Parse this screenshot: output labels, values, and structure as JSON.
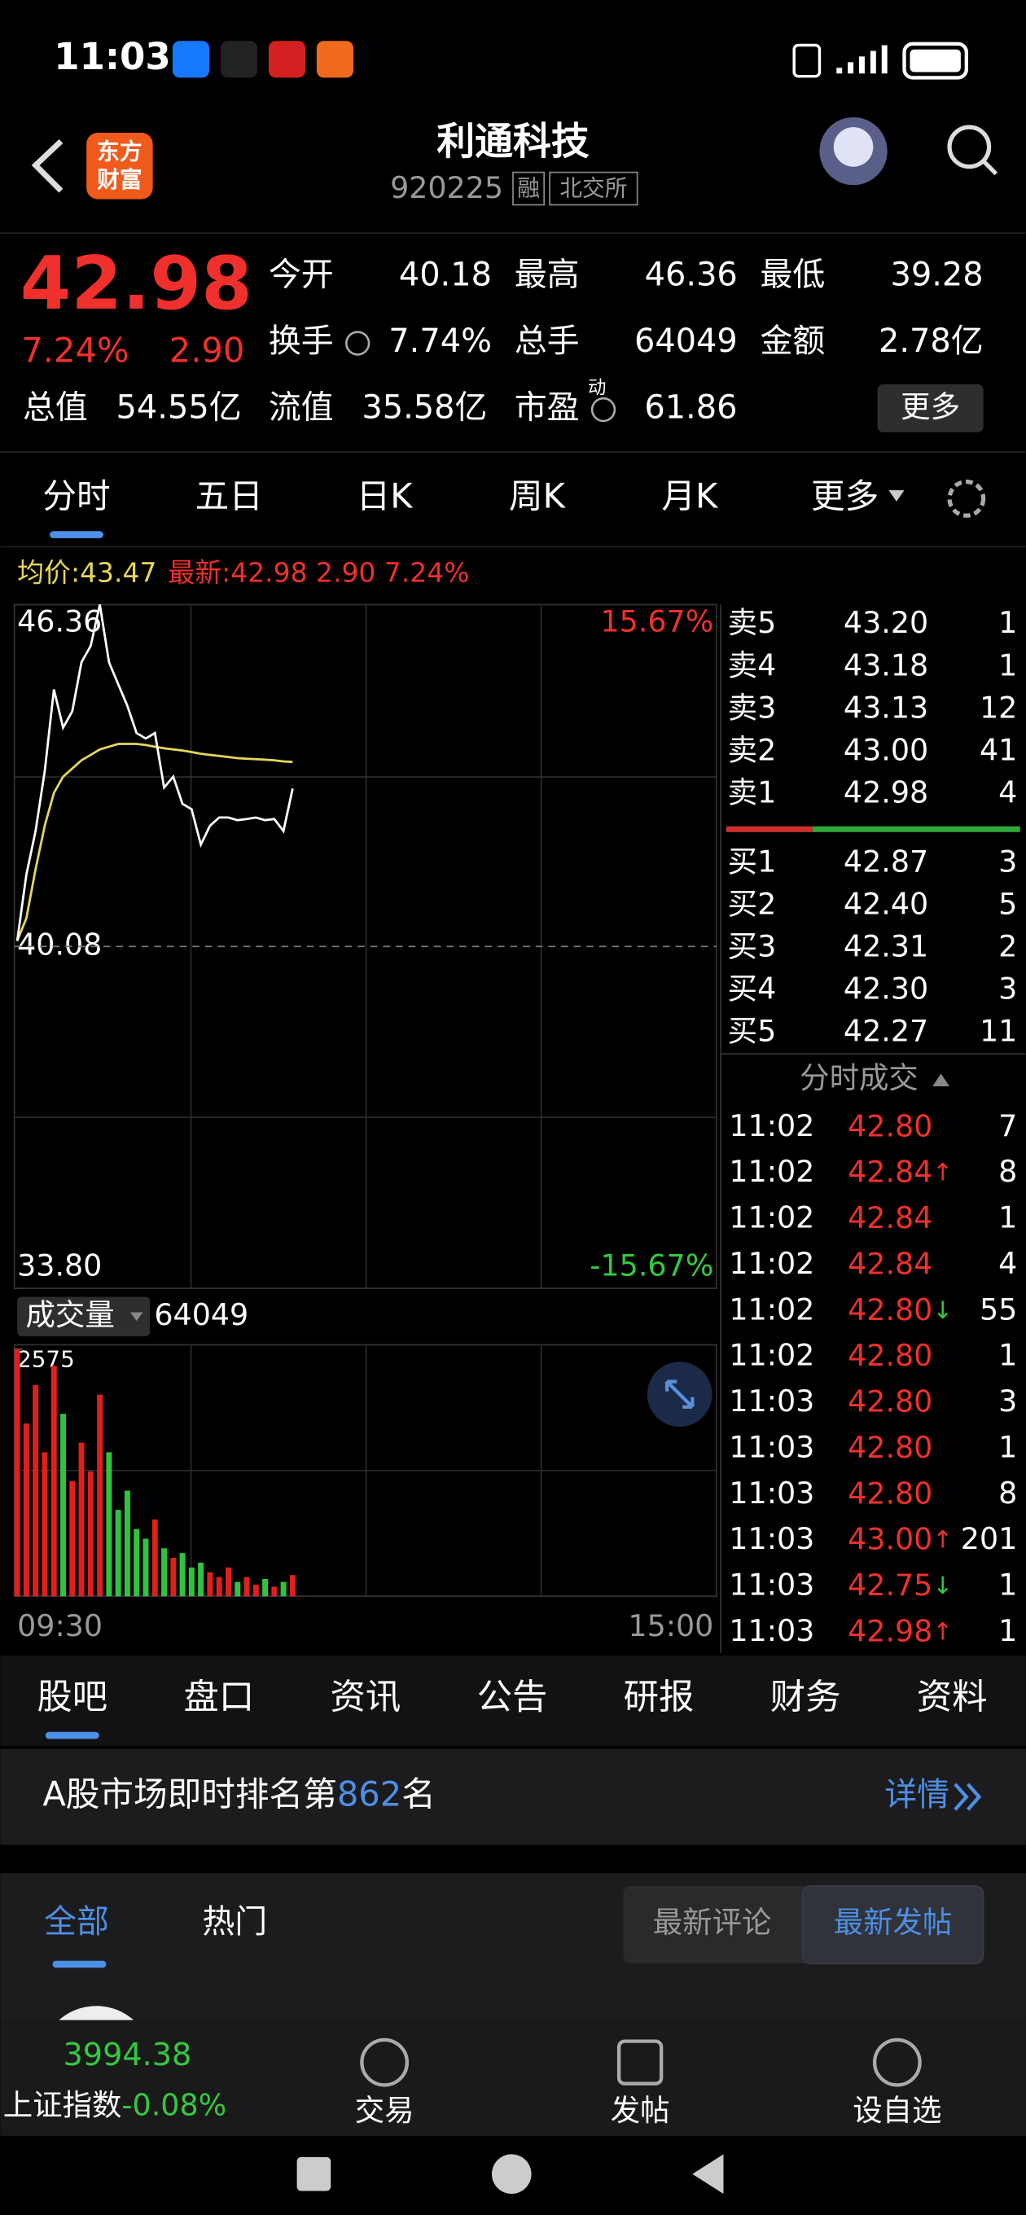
{
  "status": {
    "time": "11:03"
  },
  "header": {
    "logo": [
      "东方",
      "财富"
    ],
    "title": "利通科技",
    "code": "920225",
    "tags": [
      "融",
      "北交所"
    ]
  },
  "quote": {
    "price": "42.98",
    "pct": "7.24%",
    "change": "2.90",
    "color": "#f0302c",
    "stats": [
      {
        "label": "今开",
        "value": "40.18",
        "color": "#f0302c"
      },
      {
        "label": "最高",
        "value": "46.36",
        "color": "#f0302c"
      },
      {
        "label": "最低",
        "value": "39.28",
        "color": "#34c940"
      },
      {
        "label": "换手",
        "value": "7.74%",
        "color": "#ffffff"
      },
      {
        "label": "总手",
        "value": "64049",
        "color": "#ffffff"
      },
      {
        "label": "金额",
        "value": "2.78亿",
        "color": "#ffffff"
      },
      {
        "label": "总值",
        "value": "54.55亿",
        "color": "#ffffff"
      },
      {
        "label": "流值",
        "value": "35.58亿",
        "color": "#ffffff"
      },
      {
        "label": "市盈",
        "sup": "动",
        "value": "61.86",
        "color": "#ffffff"
      }
    ],
    "more": "更多"
  },
  "tabs": {
    "items": [
      "分时",
      "五日",
      "日K",
      "周K",
      "月K",
      "更多"
    ],
    "active": 0
  },
  "intraday": {
    "avg_label": "均价:",
    "avg": "43.47",
    "latest_label": "最新:",
    "latest": "42.98 2.90 7.24%",
    "ylim": [
      33.8,
      46.36
    ],
    "yticks": [
      46.36,
      40.08,
      {
        "value": 33.8,
        "label": "33.80"
      }
    ],
    "pct_labels": [
      "15.67%",
      "-15.67%"
    ],
    "price": [
      40.18,
      41.4,
      42.2,
      43.3,
      44.8,
      44.1,
      44.4,
      45.3,
      45.6,
      46.36,
      45.3,
      44.9,
      44.5,
      44.0,
      43.9,
      44.0,
      43.0,
      43.2,
      42.7,
      42.6,
      41.95,
      42.3,
      42.45,
      42.45,
      42.4,
      42.42,
      42.45,
      42.4,
      42.42,
      42.2,
      42.98
    ],
    "avg_line": [
      40.18,
      40.6,
      41.5,
      42.3,
      42.9,
      43.2,
      43.35,
      43.5,
      43.6,
      43.7,
      43.75,
      43.8,
      43.8,
      43.8,
      43.78,
      43.75,
      43.72,
      43.7,
      43.68,
      43.65,
      43.62,
      43.6,
      43.58,
      43.56,
      43.54,
      43.53,
      43.52,
      43.51,
      43.5,
      43.48,
      43.47
    ],
    "price_color": "#ffffff",
    "avg_color": "#e8d65a",
    "volume_label": "成交量",
    "volume_total": "64049",
    "vol_ylim": [
      0,
      2575
    ],
    "vol_yticks": [
      2575
    ],
    "volume": [
      2575,
      1800,
      2200,
      1500,
      2400,
      1900,
      1200,
      1600,
      1300,
      2100,
      1500,
      900,
      1100,
      700,
      600,
      800,
      500,
      400,
      450,
      300,
      350,
      250,
      200,
      300,
      150,
      200,
      120,
      180,
      100,
      150,
      220
    ],
    "time_labels": [
      "09:30",
      "15:00"
    ]
  },
  "orderbook": {
    "asks": [
      [
        "卖5",
        "43.20",
        "1"
      ],
      [
        "卖4",
        "43.18",
        "1"
      ],
      [
        "卖3",
        "43.13",
        "12"
      ],
      [
        "卖2",
        "43.00",
        "41"
      ],
      [
        "卖1",
        "42.98",
        "4"
      ]
    ],
    "bids": [
      [
        "买1",
        "42.87",
        "3"
      ],
      [
        "买2",
        "42.40",
        "5"
      ],
      [
        "买3",
        "42.31",
        "2"
      ],
      [
        "买4",
        "42.30",
        "3"
      ],
      [
        "买5",
        "42.27",
        "11"
      ]
    ]
  },
  "trades": {
    "title": "分时成交",
    "rows": [
      {
        "time": "11:02",
        "price": "42.80",
        "vol": "7",
        "color": "#34c940"
      },
      {
        "time": "11:02",
        "price": "42.84",
        "arrow": "↑",
        "vol": "8",
        "color": "#f0302c"
      },
      {
        "time": "11:02",
        "price": "42.84",
        "vol": "1",
        "color": "#34c940"
      },
      {
        "time": "11:02",
        "price": "42.84",
        "vol": "4",
        "color": "#34c940"
      },
      {
        "time": "11:02",
        "price": "42.80",
        "arrow": "↓",
        "vol": "55",
        "color": "#34c940"
      },
      {
        "time": "11:02",
        "price": "42.80",
        "vol": "1",
        "color": "#f0302c"
      },
      {
        "time": "11:03",
        "price": "42.80",
        "vol": "3",
        "color": "#f0302c"
      },
      {
        "time": "11:03",
        "price": "42.80",
        "vol": "1",
        "color": "#f0302c"
      },
      {
        "time": "11:03",
        "price": "42.80",
        "vol": "8",
        "color": "#f0302c"
      },
      {
        "time": "11:03",
        "price": "43.00",
        "arrow": "↑",
        "vol": "201",
        "color": "#f0302c"
      },
      {
        "time": "11:03",
        "price": "42.75",
        "arrow": "↓",
        "vol": "1",
        "color": "#f0302c"
      },
      {
        "time": "11:03",
        "price": "42.98",
        "arrow": "↑",
        "vol": "1",
        "color": "#f0302c"
      }
    ]
  },
  "sections": {
    "tabs": [
      "股吧",
      "盘口",
      "资讯",
      "公告",
      "研报",
      "财务",
      "资料"
    ],
    "active": 0
  },
  "rank": {
    "prefix": "A股市场即时排名第",
    "rank": "862",
    "suffix": "名",
    "detail": "详情"
  },
  "feed": {
    "tabs": [
      "全部",
      "热门"
    ],
    "sort": [
      "最新评论",
      "最新发帖"
    ]
  },
  "bottom_bar": {
    "index_value": "3994.38",
    "index_name": "上证指数",
    "index_change": "-0.08%",
    "actions": [
      "交易",
      "发帖",
      "设自选"
    ]
  }
}
